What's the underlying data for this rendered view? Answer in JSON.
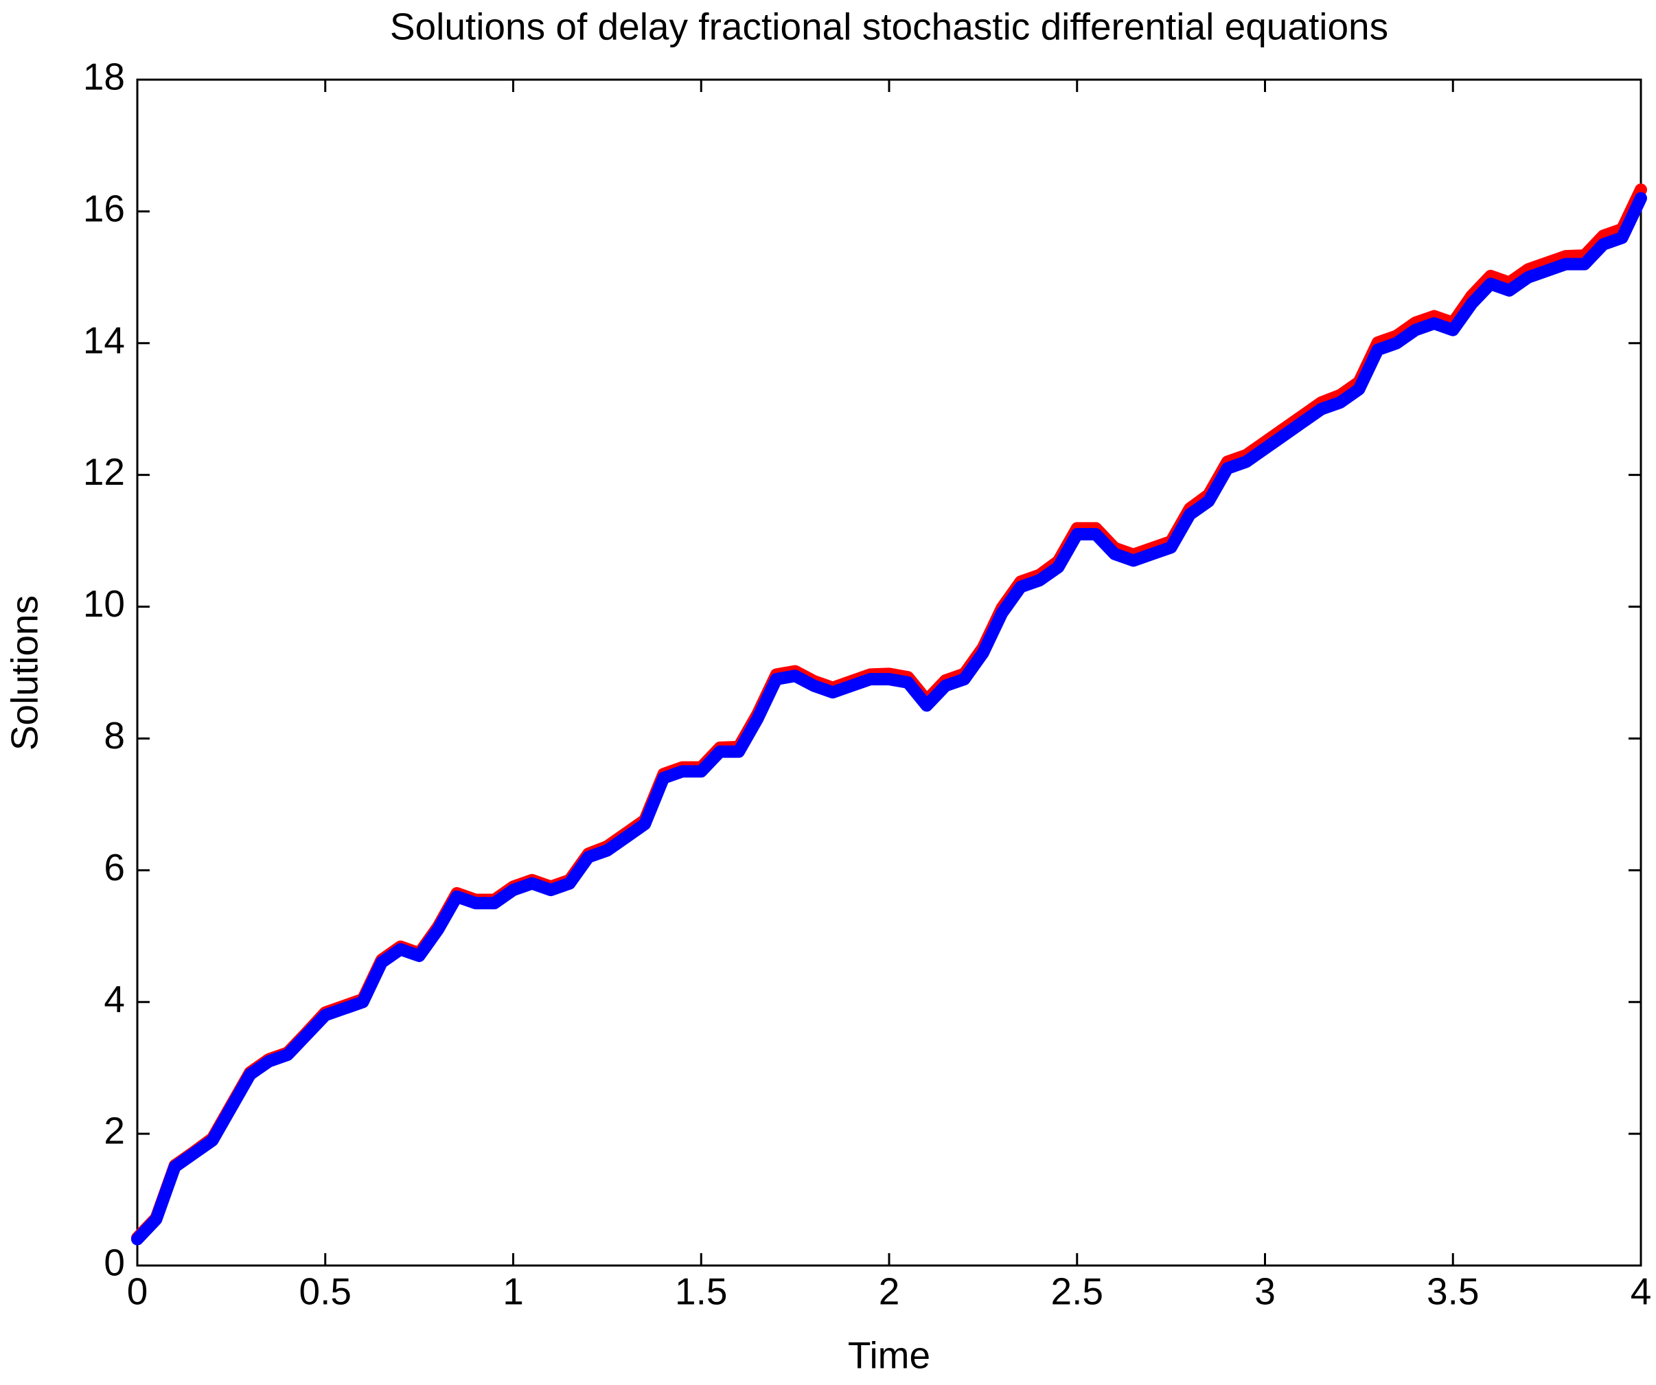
{
  "chart_data": {
    "type": "line",
    "title": "Solutions of delay fractional stochastic differential equations",
    "x_label": "Time",
    "y_label": "Solutions",
    "x": [
      0,
      0.05,
      0.1,
      0.15,
      0.2,
      0.25,
      0.3,
      0.35,
      0.4,
      0.45,
      0.5,
      0.55,
      0.6,
      0.65,
      0.7,
      0.75,
      0.8,
      0.85,
      0.9,
      0.95,
      1,
      1.05,
      1.1,
      1.15,
      1.2,
      1.25,
      1.3,
      1.35,
      1.4,
      1.45,
      1.5,
      1.55,
      1.6,
      1.65,
      1.7,
      1.75,
      1.8,
      1.85,
      1.9,
      1.95,
      2,
      2.05,
      2.1,
      2.15,
      2.2,
      2.25,
      2.3,
      2.35,
      2.4,
      2.45,
      2.5,
      2.55,
      2.6,
      2.65,
      2.7,
      2.75,
      2.8,
      2.85,
      2.9,
      2.95,
      3,
      3.05,
      3.1,
      3.15,
      3.2,
      3.25,
      3.3,
      3.35,
      3.4,
      3.45,
      3.5,
      3.55,
      3.6,
      3.65,
      3.7,
      3.75,
      3.8,
      3.85,
      3.9,
      3.95,
      4
    ],
    "series": [
      {
        "color": "#ff0000",
        "values": [
          0.42,
          0.72,
          1.52,
          1.72,
          1.93,
          2.43,
          2.93,
          3.13,
          3.23,
          3.53,
          3.84,
          3.94,
          4.04,
          4.64,
          4.84,
          4.74,
          5.14,
          5.65,
          5.55,
          5.55,
          5.75,
          5.85,
          5.75,
          5.85,
          6.25,
          6.36,
          6.56,
          6.76,
          7.46,
          7.56,
          7.56,
          7.86,
          7.87,
          8.37,
          8.97,
          9.02,
          8.87,
          8.77,
          8.87,
          8.97,
          8.98,
          8.93,
          8.58,
          8.88,
          8.98,
          9.38,
          9.98,
          10.38,
          10.48,
          10.69,
          11.19,
          11.19,
          10.89,
          10.79,
          10.89,
          10.99,
          11.49,
          11.7,
          12.2,
          12.3,
          12.5,
          12.7,
          12.9,
          13.1,
          13.21,
          13.41,
          14.01,
          14.11,
          14.31,
          14.41,
          14.31,
          14.72,
          15.02,
          14.92,
          15.12,
          15.22,
          15.32,
          15.33,
          15.63,
          15.73,
          16.33
        ]
      },
      {
        "color": "#0000ff",
        "values": [
          0.4,
          0.7,
          1.5,
          1.7,
          1.9,
          2.4,
          2.9,
          3.1,
          3.2,
          3.5,
          3.8,
          3.9,
          4.0,
          4.6,
          4.8,
          4.7,
          5.1,
          5.6,
          5.5,
          5.5,
          5.7,
          5.8,
          5.7,
          5.8,
          6.2,
          6.3,
          6.5,
          6.7,
          7.4,
          7.5,
          7.5,
          7.8,
          7.8,
          8.3,
          8.9,
          8.95,
          8.8,
          8.7,
          8.8,
          8.9,
          8.9,
          8.85,
          8.5,
          8.8,
          8.9,
          9.3,
          9.9,
          10.3,
          10.4,
          10.6,
          11.1,
          11.1,
          10.8,
          10.7,
          10.8,
          10.9,
          11.4,
          11.6,
          12.1,
          12.2,
          12.4,
          12.6,
          12.8,
          13.0,
          13.1,
          13.3,
          13.9,
          14.0,
          14.2,
          14.3,
          14.2,
          14.6,
          14.9,
          14.8,
          15.0,
          15.1,
          15.2,
          15.2,
          15.5,
          15.6,
          16.2
        ]
      }
    ],
    "xlim": [
      0,
      4
    ],
    "xticks": [
      0,
      0.5,
      1,
      1.5,
      2,
      2.5,
      3,
      3.5,
      4
    ],
    "ylim": [
      0,
      18
    ],
    "yticks": [
      0,
      2,
      4,
      6,
      8,
      10,
      12,
      14,
      16,
      18
    ],
    "grid": false
  }
}
